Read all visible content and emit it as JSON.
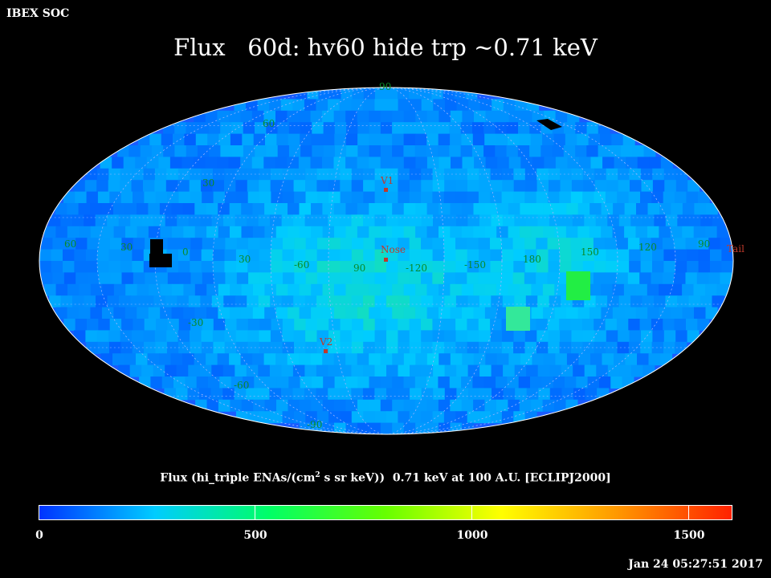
{
  "header": {
    "org": "IBEX SOC",
    "title": "Flux   60d: hv60 hide trp ~0.71 keV"
  },
  "map": {
    "projection": "Mollweide (Hammer–Aitoff style all-sky)",
    "colormap": [
      "#0033ff",
      "#00ccff",
      "#00ff66",
      "#66ff00",
      "#ffff00",
      "#ff9900",
      "#ff2200"
    ],
    "longitude_labels": [
      "60",
      "30",
      "0",
      "30",
      "-60",
      "90",
      "-120",
      "-150",
      "180",
      "150",
      "120",
      "90"
    ],
    "latitude_labels": [
      "90",
      "60",
      "30",
      "-30",
      "-60",
      "-90"
    ],
    "markers": [
      {
        "label": "V1"
      },
      {
        "label": "Nose"
      },
      {
        "label": "V2"
      },
      {
        "label": "Tail"
      }
    ]
  },
  "colorbar": {
    "label_main": "Flux (hi_triple ENAs/(cm",
    "label_sup": "2",
    "label_rest": " s sr keV))  0.71 keV at 100 A.U. [ECLIPJ2000]",
    "min": 0,
    "max": 1600,
    "ticks": [
      "0",
      "500",
      "1000",
      "1500"
    ]
  },
  "footer": {
    "timestamp": "Jan 24 05:27:51 2017"
  }
}
